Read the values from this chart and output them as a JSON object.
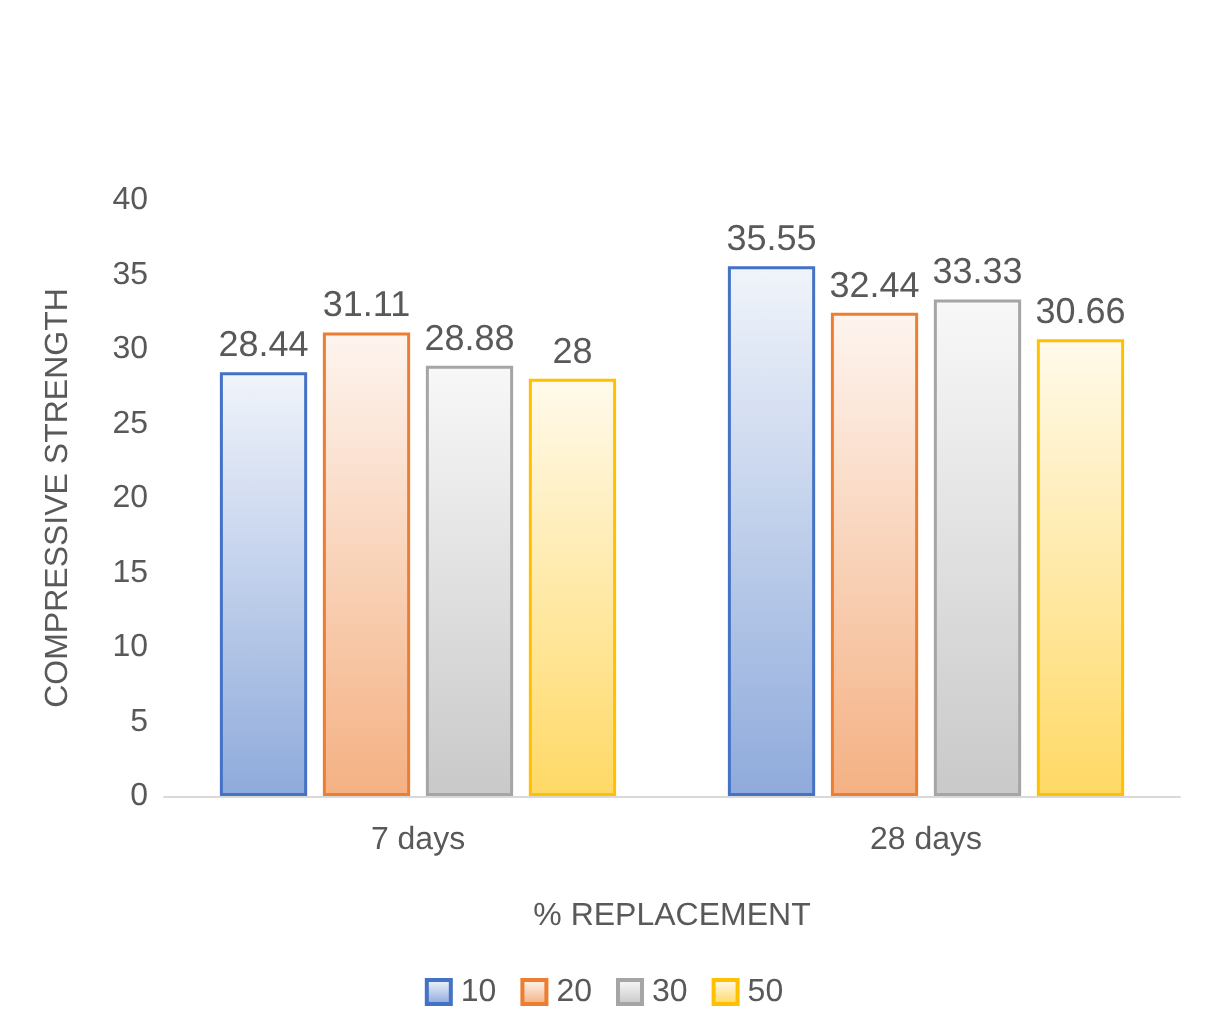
{
  "chart_data": {
    "type": "bar",
    "xlabel": "% REPLACEMENT",
    "ylabel": "COMPRESSIVE STRENGTH",
    "categories": [
      "7 days",
      "28 days"
    ],
    "series": [
      {
        "name": "10",
        "color": "#4472c4",
        "values": [
          28.44,
          35.55
        ]
      },
      {
        "name": "20",
        "color": "#ed7d31",
        "values": [
          31.11,
          32.44
        ]
      },
      {
        "name": "30",
        "color": "#a5a5a5",
        "values": [
          28.88,
          33.33
        ]
      },
      {
        "name": "50",
        "color": "#ffc000",
        "values": [
          28,
          30.66
        ]
      }
    ],
    "ylim": [
      0,
      40
    ],
    "yticks": [
      0,
      5,
      10,
      15,
      20,
      25,
      30,
      35,
      40
    ],
    "grid": false,
    "legend": "bottom",
    "data_labels": true
  }
}
